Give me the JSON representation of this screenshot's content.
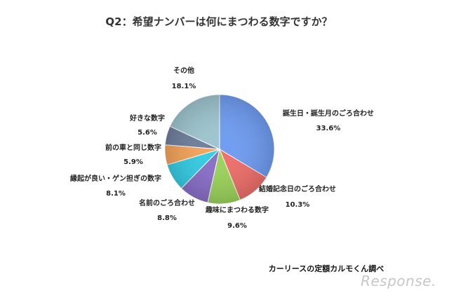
{
  "chart_data": {
    "type": "pie",
    "title": "Q2：希望ナンバーは何にまつわる数字ですか？",
    "unit": "%",
    "series": [
      {
        "label": "誕生日・誕生月のごろ合わせ",
        "value": 33.6,
        "value_label": "33.6%",
        "color": "#6f9df2"
      },
      {
        "label": "結婚記念日のごろ合わせ",
        "value": 10.3,
        "value_label": "10.3%",
        "color": "#ef6f6a"
      },
      {
        "label": "趣味にまつわる数字",
        "value": 9.6,
        "value_label": "9.6%",
        "color": "#9cd35c"
      },
      {
        "label": "名前のごろ合わせ",
        "value": 8.8,
        "value_label": "8.8%",
        "color": "#8a6fc9"
      },
      {
        "label": "縁起が良い・ゲン担ぎの数字",
        "value": 8.1,
        "value_label": "8.1%",
        "color": "#34cde6"
      },
      {
        "label": "前の車と同じ数字",
        "value": 5.9,
        "value_label": "5.9%",
        "color": "#f6a45a"
      },
      {
        "label": "好きな数字",
        "value": 5.6,
        "value_label": "5.6%",
        "color": "#6f7f9e"
      },
      {
        "label": "その他",
        "value": 18.1,
        "value_label": "18.1%",
        "color": "#9ec6cf"
      }
    ]
  },
  "source": "カーリースの定額カルモくん調べ",
  "watermark": "Response."
}
